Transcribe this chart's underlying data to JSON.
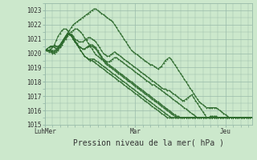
{
  "title": "",
  "xlabel": "Pression niveau de la mer( hPa )",
  "ylabel": "",
  "bg_color": "#cce8cc",
  "plot_bg_color": "#cce8dd",
  "grid_color": "#99bbaa",
  "line_color": "#2d6a2d",
  "marker": "+",
  "ylim": [
    1015,
    1023.5
  ],
  "yticks": [
    1015,
    1016,
    1017,
    1018,
    1019,
    1020,
    1021,
    1022,
    1023
  ],
  "xtick_labels": [
    "LuhMer",
    "Mar",
    "Jeu"
  ],
  "xtick_positions": [
    0,
    48,
    96
  ],
  "total_points": 111,
  "series": [
    [
      1020.2,
      1020.3,
      1020.4,
      1020.5,
      1020.5,
      1020.4,
      1020.3,
      1020.4,
      1020.5,
      1020.6,
      1020.8,
      1021.0,
      1021.2,
      1021.4,
      1021.5,
      1021.6,
      1021.7,
      1021.7,
      1021.6,
      1021.5,
      1021.3,
      1021.1,
      1020.9,
      1020.7,
      1020.5,
      1020.3,
      1020.1,
      1019.9,
      1019.8,
      1019.7,
      1019.6,
      1019.5,
      1019.4,
      1019.3,
      1019.2,
      1019.1,
      1019.0,
      1018.9,
      1018.8,
      1018.7,
      1018.6,
      1018.5,
      1018.4,
      1018.3,
      1018.2,
      1018.1,
      1018.0,
      1017.9,
      1017.8,
      1017.7,
      1017.6,
      1017.5,
      1017.4,
      1017.3,
      1017.2,
      1017.1,
      1017.0,
      1016.9,
      1016.8,
      1016.7,
      1016.6,
      1016.5,
      1016.4,
      1016.3,
      1016.2,
      1016.1,
      1016.0,
      1015.9,
      1015.8,
      1015.7,
      1015.6,
      1015.6,
      1015.5,
      1015.5,
      1015.5,
      1015.5,
      1015.5,
      1015.5,
      1015.5,
      1015.5,
      1015.5,
      1015.5,
      1015.5,
      1015.5,
      1015.5,
      1015.5,
      1015.5,
      1015.5,
      1015.5,
      1015.5,
      1015.5,
      1015.5,
      1015.5,
      1015.5,
      1015.5,
      1015.5,
      1015.5,
      1015.5,
      1015.5,
      1015.5,
      1015.5,
      1015.5,
      1015.5,
      1015.5,
      1015.5,
      1015.5,
      1015.5,
      1015.5,
      1015.5,
      1015.5,
      1015.5
    ],
    [
      1020.2,
      1020.2,
      1020.2,
      1020.3,
      1020.4,
      1020.6,
      1020.9,
      1021.2,
      1021.4,
      1021.6,
      1021.7,
      1021.7,
      1021.6,
      1021.4,
      1021.2,
      1021.0,
      1020.8,
      1020.6,
      1020.5,
      1020.4,
      1020.3,
      1020.3,
      1020.4,
      1020.5,
      1020.5,
      1020.5,
      1020.4,
      1020.3,
      1020.1,
      1019.9,
      1019.7,
      1019.5,
      1019.3,
      1019.2,
      1019.1,
      1019.0,
      1018.9,
      1018.8,
      1018.7,
      1018.6,
      1018.5,
      1018.4,
      1018.3,
      1018.2,
      1018.1,
      1018.0,
      1017.9,
      1017.8,
      1017.7,
      1017.6,
      1017.5,
      1017.4,
      1017.3,
      1017.2,
      1017.1,
      1017.0,
      1016.9,
      1016.8,
      1016.7,
      1016.6,
      1016.5,
      1016.4,
      1016.3,
      1016.2,
      1016.1,
      1016.0,
      1015.9,
      1015.8,
      1015.7,
      1015.6,
      1015.5,
      1015.5,
      1015.5,
      1015.5,
      1015.5,
      1015.5,
      1015.5,
      1015.5,
      1015.5,
      1015.5,
      1015.5,
      1015.5,
      1015.5,
      1015.5,
      1015.5,
      1015.5,
      1015.5,
      1015.5,
      1015.5,
      1015.5,
      1015.5,
      1015.5,
      1015.5,
      1015.5,
      1015.5,
      1015.5,
      1015.5,
      1015.5,
      1015.5,
      1015.5,
      1015.5,
      1015.5,
      1015.5,
      1015.5,
      1015.5,
      1015.5,
      1015.5,
      1015.5,
      1015.5,
      1015.5,
      1015.5
    ],
    [
      1020.2,
      1020.3,
      1020.4,
      1020.5,
      1020.5,
      1020.5,
      1020.5,
      1020.5,
      1020.6,
      1020.8,
      1021.0,
      1021.2,
      1021.4,
      1021.6,
      1021.8,
      1022.0,
      1022.1,
      1022.2,
      1022.3,
      1022.4,
      1022.5,
      1022.6,
      1022.7,
      1022.8,
      1022.9,
      1023.0,
      1023.1,
      1023.1,
      1023.0,
      1022.9,
      1022.8,
      1022.7,
      1022.6,
      1022.5,
      1022.4,
      1022.3,
      1022.2,
      1022.0,
      1021.8,
      1021.6,
      1021.4,
      1021.2,
      1021.0,
      1020.8,
      1020.6,
      1020.4,
      1020.2,
      1020.1,
      1020.0,
      1019.9,
      1019.8,
      1019.7,
      1019.6,
      1019.5,
      1019.4,
      1019.3,
      1019.2,
      1019.2,
      1019.1,
      1019.0,
      1018.9,
      1019.0,
      1019.1,
      1019.3,
      1019.5,
      1019.6,
      1019.7,
      1019.6,
      1019.4,
      1019.2,
      1019.0,
      1018.8,
      1018.6,
      1018.4,
      1018.2,
      1018.0,
      1017.8,
      1017.6,
      1017.4,
      1017.2,
      1017.0,
      1016.8,
      1016.6,
      1016.5,
      1016.4,
      1016.3,
      1016.2,
      1016.2,
      1016.2,
      1016.2,
      1016.2,
      1016.2,
      1016.1,
      1016.0,
      1015.9,
      1015.8,
      1015.7,
      1015.6,
      1015.5,
      1015.5,
      1015.5,
      1015.5,
      1015.5,
      1015.5,
      1015.5,
      1015.5,
      1015.5,
      1015.5,
      1015.5,
      1015.5,
      1015.5
    ],
    [
      1020.2,
      1020.2,
      1020.2,
      1020.2,
      1020.2,
      1020.2,
      1020.3,
      1020.4,
      1020.6,
      1020.8,
      1021.0,
      1021.2,
      1021.4,
      1021.4,
      1021.3,
      1021.2,
      1021.0,
      1020.9,
      1020.8,
      1020.8,
      1020.8,
      1020.9,
      1021.0,
      1021.1,
      1021.1,
      1021.0,
      1020.9,
      1020.8,
      1020.6,
      1020.4,
      1020.2,
      1020.0,
      1019.9,
      1019.8,
      1019.8,
      1019.9,
      1020.0,
      1020.1,
      1020.0,
      1019.9,
      1019.8,
      1019.7,
      1019.6,
      1019.5,
      1019.4,
      1019.3,
      1019.2,
      1019.1,
      1019.0,
      1018.9,
      1018.8,
      1018.7,
      1018.6,
      1018.5,
      1018.4,
      1018.3,
      1018.2,
      1018.1,
      1018.0,
      1017.9,
      1017.8,
      1017.7,
      1017.6,
      1017.5,
      1017.5,
      1017.4,
      1017.4,
      1017.3,
      1017.2,
      1017.1,
      1017.0,
      1016.9,
      1016.8,
      1016.7,
      1016.7,
      1016.8,
      1016.9,
      1017.0,
      1017.1,
      1016.9,
      1016.7,
      1016.5,
      1016.3,
      1016.1,
      1015.9,
      1015.7,
      1015.5,
      1015.5,
      1015.6,
      1015.6,
      1015.6,
      1015.6,
      1015.5,
      1015.5,
      1015.5,
      1015.5,
      1015.5,
      1015.5,
      1015.5,
      1015.5,
      1015.5,
      1015.5,
      1015.5,
      1015.5,
      1015.5,
      1015.5,
      1015.5,
      1015.5,
      1015.5,
      1015.5,
      1015.5
    ],
    [
      1020.2,
      1020.2,
      1020.2,
      1020.2,
      1020.1,
      1020.1,
      1020.2,
      1020.3,
      1020.5,
      1020.7,
      1021.0,
      1021.2,
      1021.4,
      1021.4,
      1021.3,
      1021.1,
      1020.9,
      1020.7,
      1020.5,
      1020.4,
      1020.3,
      1020.3,
      1020.4,
      1020.5,
      1020.6,
      1020.6,
      1020.5,
      1020.4,
      1020.2,
      1020.0,
      1019.8,
      1019.6,
      1019.5,
      1019.4,
      1019.4,
      1019.5,
      1019.6,
      1019.7,
      1019.7,
      1019.6,
      1019.5,
      1019.4,
      1019.3,
      1019.2,
      1019.1,
      1019.0,
      1018.9,
      1018.8,
      1018.7,
      1018.6,
      1018.5,
      1018.4,
      1018.3,
      1018.2,
      1018.1,
      1018.0,
      1017.9,
      1017.8,
      1017.8,
      1017.7,
      1017.6,
      1017.5,
      1017.4,
      1017.3,
      1017.2,
      1017.1,
      1017.0,
      1016.9,
      1016.8,
      1016.7,
      1016.6,
      1016.5,
      1016.4,
      1016.3,
      1016.2,
      1016.1,
      1016.0,
      1015.9,
      1015.8,
      1015.7,
      1015.6,
      1015.5,
      1015.5,
      1015.5,
      1015.5,
      1015.5,
      1015.5,
      1015.5,
      1015.5,
      1015.5,
      1015.5,
      1015.5,
      1015.5,
      1015.5,
      1015.5,
      1015.5,
      1015.5,
      1015.5,
      1015.5,
      1015.5,
      1015.5,
      1015.5,
      1015.5,
      1015.5,
      1015.5,
      1015.5,
      1015.5,
      1015.5,
      1015.5,
      1015.5,
      1015.5
    ],
    [
      1020.2,
      1020.2,
      1020.2,
      1020.2,
      1020.1,
      1020.1,
      1020.2,
      1020.3,
      1020.5,
      1020.7,
      1020.9,
      1021.1,
      1021.3,
      1021.3,
      1021.2,
      1021.0,
      1020.8,
      1020.6,
      1020.4,
      1020.2,
      1020.0,
      1019.8,
      1019.7,
      1019.6,
      1019.6,
      1019.6,
      1019.6,
      1019.5,
      1019.4,
      1019.3,
      1019.2,
      1019.1,
      1019.0,
      1018.9,
      1018.8,
      1018.7,
      1018.6,
      1018.5,
      1018.4,
      1018.3,
      1018.2,
      1018.1,
      1018.0,
      1017.9,
      1017.8,
      1017.7,
      1017.6,
      1017.5,
      1017.4,
      1017.3,
      1017.2,
      1017.1,
      1017.0,
      1016.9,
      1016.8,
      1016.7,
      1016.6,
      1016.5,
      1016.4,
      1016.3,
      1016.2,
      1016.1,
      1016.0,
      1015.9,
      1015.8,
      1015.7,
      1015.6,
      1015.5,
      1015.5,
      1015.5,
      1015.5,
      1015.5,
      1015.5,
      1015.5,
      1015.5,
      1015.5,
      1015.5,
      1015.5,
      1015.5,
      1015.5,
      1015.5,
      1015.5,
      1015.5,
      1015.5,
      1015.5,
      1015.5,
      1015.5,
      1015.5,
      1015.5,
      1015.5,
      1015.5,
      1015.5,
      1015.5,
      1015.5,
      1015.5,
      1015.5,
      1015.5,
      1015.5,
      1015.5,
      1015.5,
      1015.5,
      1015.5,
      1015.5,
      1015.5,
      1015.5,
      1015.5,
      1015.5,
      1015.5,
      1015.5,
      1015.5,
      1015.5
    ],
    [
      1020.2,
      1020.2,
      1020.1,
      1020.1,
      1020.0,
      1020.0,
      1020.1,
      1020.2,
      1020.4,
      1020.6,
      1020.9,
      1021.1,
      1021.3,
      1021.3,
      1021.2,
      1021.0,
      1020.8,
      1020.6,
      1020.4,
      1020.2,
      1020.0,
      1019.8,
      1019.7,
      1019.6,
      1019.5,
      1019.5,
      1019.4,
      1019.3,
      1019.2,
      1019.1,
      1019.0,
      1018.9,
      1018.8,
      1018.7,
      1018.6,
      1018.5,
      1018.4,
      1018.3,
      1018.2,
      1018.1,
      1018.0,
      1017.9,
      1017.8,
      1017.7,
      1017.6,
      1017.5,
      1017.4,
      1017.3,
      1017.2,
      1017.1,
      1017.0,
      1016.9,
      1016.8,
      1016.7,
      1016.6,
      1016.5,
      1016.4,
      1016.3,
      1016.2,
      1016.1,
      1016.0,
      1015.9,
      1015.8,
      1015.7,
      1015.6,
      1015.5,
      1015.5,
      1015.5,
      1015.5,
      1015.5,
      1015.5,
      1015.5,
      1015.5,
      1015.5,
      1015.5,
      1015.5,
      1015.5,
      1015.5,
      1015.5,
      1015.5,
      1015.5,
      1015.5,
      1015.5,
      1015.5,
      1015.5,
      1015.5,
      1015.5,
      1015.5,
      1015.5,
      1015.5,
      1015.5,
      1015.5,
      1015.5,
      1015.5,
      1015.5,
      1015.5,
      1015.5,
      1015.5,
      1015.5,
      1015.5,
      1015.5,
      1015.5,
      1015.5,
      1015.5,
      1015.5,
      1015.5,
      1015.5,
      1015.5,
      1015.5,
      1015.5,
      1015.5
    ]
  ]
}
